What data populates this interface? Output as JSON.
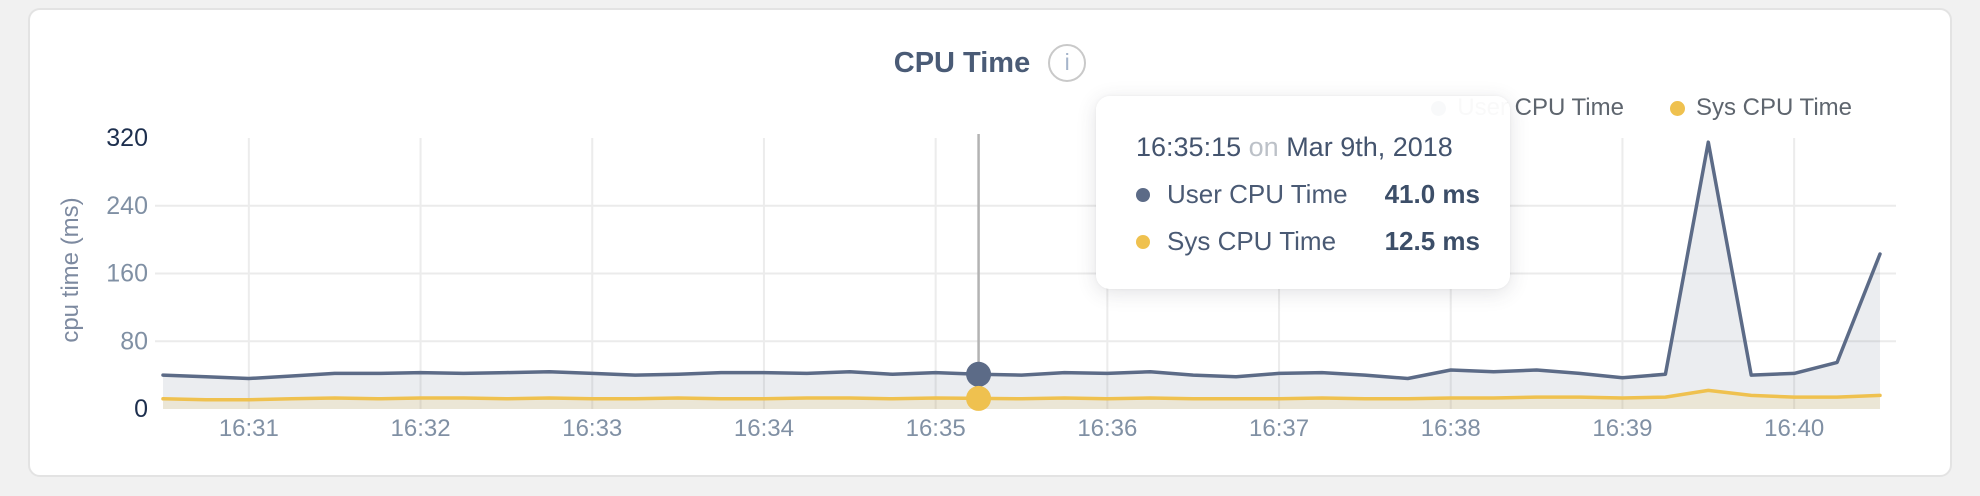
{
  "chart": {
    "title": "CPU Time",
    "info_icon_glyph": "i"
  },
  "legend": {
    "items": [
      {
        "label": "User CPU Time",
        "color": "#5C6B87"
      },
      {
        "label": "Sys CPU Time",
        "color": "#EFC14F"
      }
    ]
  },
  "tooltip": {
    "time": "16:35:15",
    "conjunction": "on",
    "date": "Mar 9th, 2018",
    "rows": [
      {
        "label": "User CPU Time",
        "value": "41.0 ms",
        "color": "#5C6B87"
      },
      {
        "label": "Sys CPU Time",
        "value": "12.5 ms",
        "color": "#EFC14F"
      }
    ]
  },
  "chart_data": {
    "type": "area",
    "title": "CPU Time",
    "xlabel": "",
    "ylabel": "cpu time (ms)",
    "ylim": [
      0,
      320
    ],
    "y_ticks": [
      0,
      80,
      160,
      240,
      320
    ],
    "y_ticks_strong": [
      0,
      320
    ],
    "x_tick_labels": [
      "16:31",
      "16:32",
      "16:33",
      "16:34",
      "16:35",
      "16:36",
      "16:37",
      "16:38",
      "16:39",
      "16:40"
    ],
    "grid": true,
    "legend_position": "top-right",
    "times": [
      "16:30:30",
      "16:30:45",
      "16:31:00",
      "16:31:15",
      "16:31:30",
      "16:31:45",
      "16:32:00",
      "16:32:15",
      "16:32:30",
      "16:32:45",
      "16:33:00",
      "16:33:15",
      "16:33:30",
      "16:33:45",
      "16:34:00",
      "16:34:15",
      "16:34:30",
      "16:34:45",
      "16:35:00",
      "16:35:15",
      "16:35:30",
      "16:35:45",
      "16:36:00",
      "16:36:15",
      "16:36:30",
      "16:36:45",
      "16:37:00",
      "16:37:15",
      "16:37:30",
      "16:37:45",
      "16:38:00",
      "16:38:15",
      "16:38:30",
      "16:38:45",
      "16:39:00",
      "16:39:15",
      "16:39:30",
      "16:39:45",
      "16:40:00",
      "16:40:15",
      "16:40:30"
    ],
    "series": [
      {
        "name": "User CPU Time",
        "color": "#5C6B87",
        "fill": "rgba(92,107,135,0.12)",
        "values": [
          40,
          38,
          36,
          39,
          42,
          42,
          43,
          42,
          43,
          44,
          42,
          40,
          41,
          43,
          43,
          42,
          44,
          41,
          43,
          41,
          40,
          43,
          42,
          44,
          40,
          38,
          42,
          43,
          40,
          36,
          46,
          44,
          46,
          42,
          37,
          41,
          315,
          40,
          42,
          55,
          183
        ]
      },
      {
        "name": "Sys CPU Time",
        "color": "#EFC14F",
        "fill": "rgba(239,193,79,0.16)",
        "values": [
          12,
          11,
          11,
          12,
          13,
          12,
          13,
          13,
          12,
          13,
          12,
          12,
          13,
          12,
          12,
          13,
          13,
          12,
          13,
          12.5,
          12,
          13,
          12,
          13,
          12,
          12,
          12,
          13,
          12,
          12,
          13,
          13,
          14,
          14,
          13,
          14,
          22,
          16,
          14,
          14,
          16
        ]
      }
    ],
    "hover_index": 19,
    "hover_values_ms": {
      "user": 41.0,
      "sys": 12.5
    },
    "axis_colors": {
      "tick": "#8090A4",
      "tick_strong": "#1D2F4E",
      "grid": "#EBEBEB",
      "crosshair": "#B3B3B3"
    }
  }
}
